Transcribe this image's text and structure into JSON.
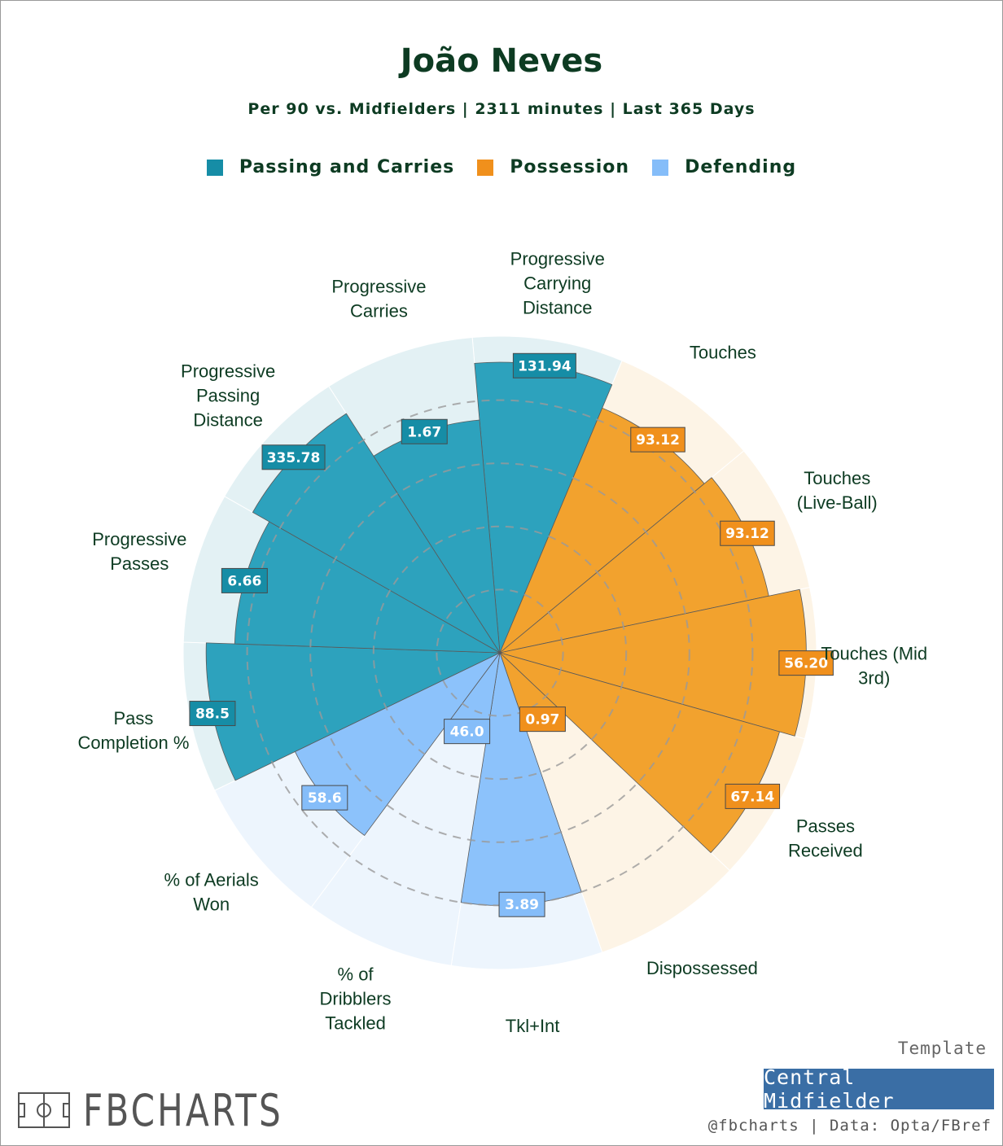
{
  "chart_data": {
    "type": "radar-pie",
    "title": "João Neves",
    "subtitle": "Per 90 vs. Midfielders | 2311 minutes | Last 365 Days",
    "legend": [
      {
        "name": "Passing and Carries",
        "color": "#168da6"
      },
      {
        "name": "Possession",
        "color": "#f0901c"
      },
      {
        "name": "Defending",
        "color": "#85bdf9"
      }
    ],
    "percentile_max": 100,
    "categories": [
      {
        "label": "Progressive Carrying Distance",
        "value_label": "131.94",
        "percentile": 92,
        "group": 0
      },
      {
        "label": "Touches",
        "value_label": "93.12",
        "percentile": 84,
        "group": 1
      },
      {
        "label": "Touches (Live-Ball)",
        "value_label": "93.12",
        "percentile": 87,
        "group": 1
      },
      {
        "label": "Touches (Mid 3rd)",
        "value_label": "56.20",
        "percentile": 97,
        "group": 1
      },
      {
        "label": "Passes Received",
        "value_label": "67.14",
        "percentile": 92,
        "group": 1
      },
      {
        "label": "Dispossessed",
        "value_label": "0.97",
        "percentile": 25,
        "group": 1
      },
      {
        "label": "Tkl+Int",
        "value_label": "3.89",
        "percentile": 80,
        "group": 2
      },
      {
        "label": "% of Dribblers Tackled",
        "value_label": "46.0",
        "percentile": 27,
        "group": 2
      },
      {
        "label": "% of Aerials Won",
        "value_label": "58.6",
        "percentile": 72,
        "group": 2
      },
      {
        "label": "Pass Completion %",
        "value_label": "88.5",
        "percentile": 93,
        "group": 0
      },
      {
        "label": "Progressive Passes",
        "value_label": "6.66",
        "percentile": 84,
        "group": 0
      },
      {
        "label": "Progressive Passing Distance",
        "value_label": "335.78",
        "percentile": 90,
        "group": 0
      },
      {
        "label": "Progressive Carries",
        "value_label": "1.67",
        "percentile": 74,
        "group": 0
      }
    ]
  },
  "footer": {
    "logo_text": "FBCHARTS",
    "template_label": "Template",
    "template_name": "Central Midfielder",
    "credit": "@fbcharts | Data: Opta/FBref"
  }
}
